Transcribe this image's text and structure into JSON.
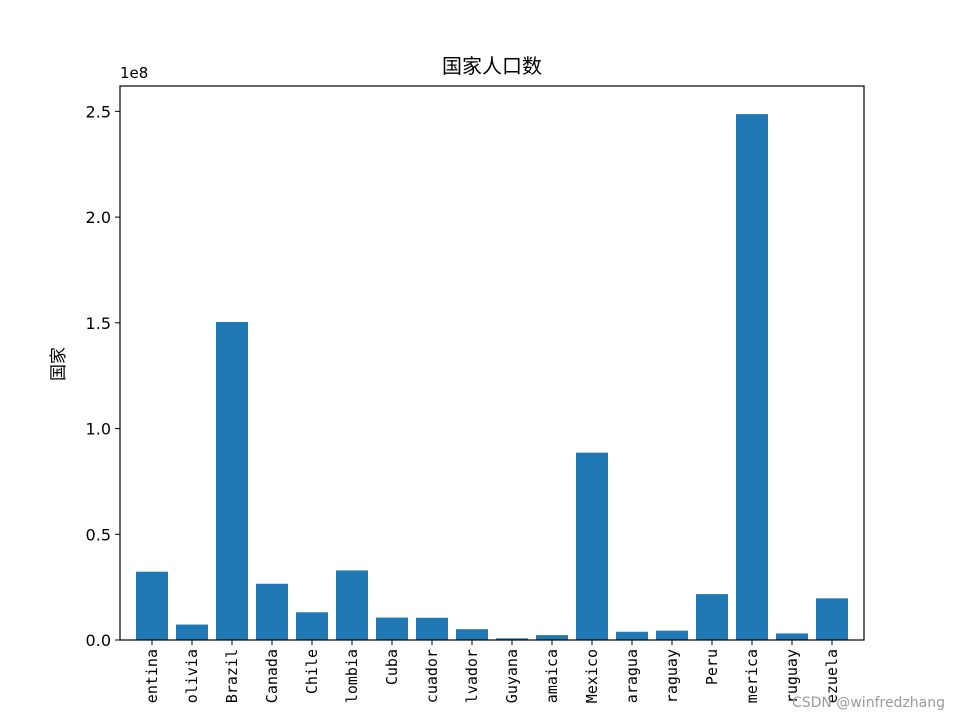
{
  "chart_data": {
    "type": "bar",
    "title": "国家人口数",
    "ylabel": "国家",
    "xlabel": "",
    "y_offset_label": "1e8",
    "ylim": [
      0,
      262000000
    ],
    "yticks": [
      0,
      50000000,
      100000000,
      150000000,
      200000000,
      250000000
    ],
    "ytick_labels": [
      "0.0",
      "0.5",
      "1.0",
      "1.5",
      "2.0",
      "2.5"
    ],
    "categories": [
      "entina",
      "olivia",
      "Brazil",
      "Canada",
      "Chile",
      "lombia",
      "Cuba",
      "cuador",
      "lvador",
      "Guyana",
      "amaica",
      "Mexico",
      "aragua",
      "raguay",
      "Peru",
      "merica",
      "ruguay",
      "ezuela"
    ],
    "values": [
      32300000,
      7300000,
      150400000,
      26600000,
      13100000,
      32900000,
      10600000,
      10500000,
      5100000,
      800000,
      2300000,
      88600000,
      3900000,
      4400000,
      21700000,
      248700000,
      3100000,
      19700000
    ],
    "bar_color": "#1f77b4",
    "grid": false,
    "x_tick_rotation": "vertical"
  },
  "watermark": "CSDN @winfredzhang"
}
